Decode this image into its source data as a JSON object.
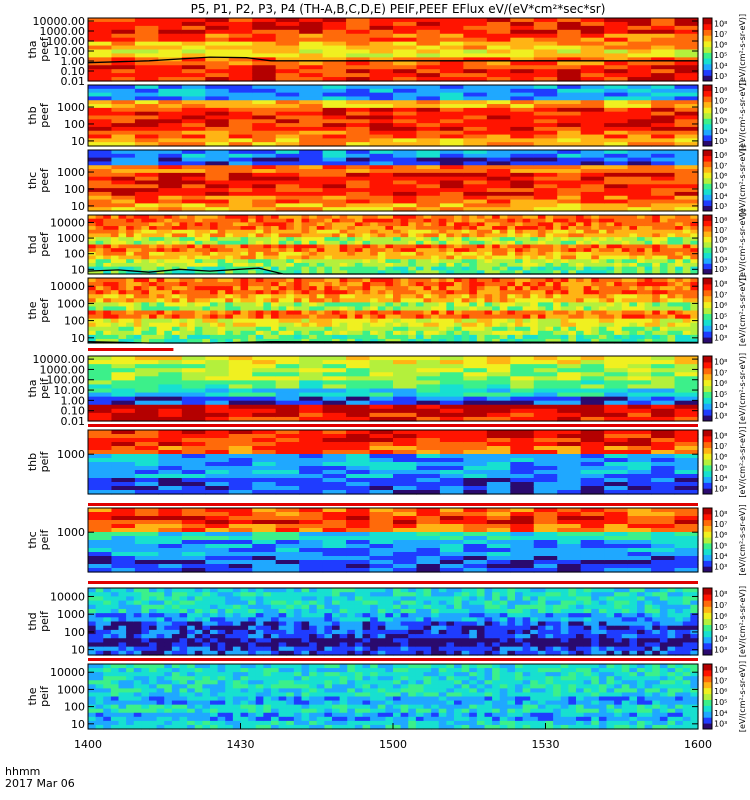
{
  "title": "P5, P1, P2, P3, P4 (TH-A,B,C,D,E) PEIF,PEEF EFlux eV/(eV*cm²*sec*sr)",
  "colorbar": {
    "label": "[eV/(cm²-s-sr-eV)]",
    "ticks": [
      "10³",
      "10⁴",
      "10⁵",
      "10⁶",
      "10⁷",
      "10⁸"
    ]
  },
  "time_axis": {
    "label_line1": "hhmm",
    "label_line2": "2017 Mar 06",
    "ticks": [
      "1400",
      "1430",
      "1500",
      "1530",
      "1600"
    ]
  },
  "colors": {
    "spectrum": [
      "#2a0a6e",
      "#1f3cff",
      "#1fa8ff",
      "#17e0d0",
      "#3cf08a",
      "#b4f03c",
      "#f0f020",
      "#ffb414",
      "#ff6a0a",
      "#ff1400",
      "#b40000"
    ],
    "flag_red": "#e00000",
    "trace": "#000000"
  },
  "chart_data": {
    "type": "heatmap",
    "x_range": [
      "1400",
      "1600"
    ],
    "panels": [
      {
        "id": "tha-peef",
        "probe": "tha",
        "quantity": "peef",
        "ytick_labels": [
          "10000.00",
          "1000.00",
          "100.00",
          "10.00",
          "1.00",
          "0.10",
          "0.01"
        ],
        "ylim": [
          0.01,
          20000
        ]
      },
      {
        "id": "thb-peef",
        "probe": "thb",
        "quantity": "peef",
        "ytick_labels": [
          "1000",
          "100",
          "10"
        ],
        "ylim": [
          5,
          20000
        ]
      },
      {
        "id": "thc-peef",
        "probe": "thc",
        "quantity": "peef",
        "ytick_labels": [
          "1000",
          "100",
          "10"
        ],
        "ylim": [
          5,
          20000
        ]
      },
      {
        "id": "thd-peef",
        "probe": "thd",
        "quantity": "peef",
        "ytick_labels": [
          "10000",
          "1000",
          "100",
          "10"
        ],
        "ylim": [
          5,
          30000
        ]
      },
      {
        "id": "the-peef",
        "probe": "the",
        "quantity": "peef",
        "ytick_labels": [
          "10000",
          "1000",
          "100",
          "10"
        ],
        "ylim": [
          5,
          30000
        ]
      },
      {
        "id": "tha-peif",
        "probe": "tha",
        "quantity": "peif",
        "ytick_labels": [
          "10000.00",
          "1000.00",
          "100.00",
          "10.00",
          "1.00",
          "0.10",
          "0.01"
        ],
        "ylim": [
          0.01,
          20000
        ]
      },
      {
        "id": "thb-peif",
        "probe": "thb",
        "quantity": "peif",
        "ytick_labels": [
          "1000"
        ],
        "ylim": [
          5,
          25000
        ]
      },
      {
        "id": "thc-peif",
        "probe": "thc",
        "quantity": "peif",
        "ytick_labels": [
          "1000"
        ],
        "ylim": [
          5,
          25000
        ]
      },
      {
        "id": "thd-peif",
        "probe": "thd",
        "quantity": "peif",
        "ytick_labels": [
          "10000",
          "1000",
          "100",
          "10"
        ],
        "ylim": [
          5,
          30000
        ]
      },
      {
        "id": "the-peif",
        "probe": "the",
        "quantity": "peif",
        "ytick_labels": [
          "10000",
          "1000",
          "100",
          "10"
        ],
        "ylim": [
          5,
          30000
        ]
      }
    ]
  }
}
